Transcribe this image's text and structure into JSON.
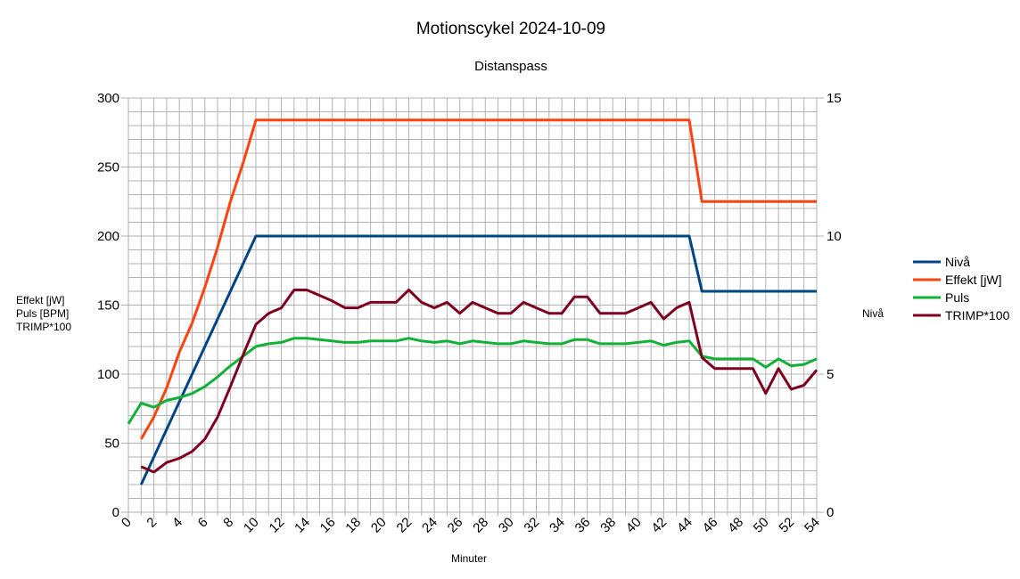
{
  "chart_data": {
    "type": "line",
    "title": "Motionscykel 2024-10-09",
    "subtitle": "Distanspass",
    "xlabel": "Minuter",
    "ylabel_left": [
      "Effekt [jW]",
      "Puls [BPM]",
      "TRIMP*100"
    ],
    "ylabel_right": "Nivå",
    "xlim": [
      0,
      54
    ],
    "ylim_left": [
      0,
      300
    ],
    "ylim_right": [
      0,
      15
    ],
    "x_ticks": [
      0,
      2,
      4,
      6,
      8,
      10,
      12,
      14,
      16,
      18,
      20,
      22,
      24,
      26,
      28,
      30,
      32,
      34,
      36,
      38,
      40,
      42,
      44,
      46,
      48,
      50,
      52,
      54
    ],
    "y_left_ticks": [
      0,
      50,
      100,
      150,
      200,
      250,
      300
    ],
    "y_right_ticks": [
      0,
      5,
      10,
      15
    ],
    "grid": true,
    "legend_position": "right",
    "series": [
      {
        "name": "Nivå",
        "axis": "right",
        "color": "#004586",
        "x": [
          1,
          10,
          44,
          45,
          54
        ],
        "values": [
          1,
          10,
          10,
          8,
          8
        ]
      },
      {
        "name": "Effekt [jW]",
        "axis": "left",
        "color": "#ff420e",
        "x": [
          1,
          2,
          3,
          4,
          5,
          6,
          7,
          8,
          9,
          10,
          44,
          45,
          54
        ],
        "values": [
          53,
          69,
          90,
          116,
          137,
          163,
          192,
          225,
          253,
          284,
          284,
          225,
          225
        ]
      },
      {
        "name": "Puls",
        "axis": "left",
        "color": "#12b135",
        "x": [
          0,
          1,
          2,
          3,
          4,
          5,
          6,
          7,
          8,
          9,
          10,
          11,
          12,
          13,
          14,
          15,
          16,
          17,
          18,
          19,
          20,
          21,
          22,
          23,
          24,
          25,
          26,
          27,
          28,
          29,
          30,
          31,
          32,
          33,
          34,
          35,
          36,
          37,
          38,
          39,
          40,
          41,
          42,
          43,
          44,
          45,
          46,
          47,
          48,
          49,
          50,
          51,
          52,
          53,
          54
        ],
        "values": [
          64,
          79,
          76,
          81,
          83,
          86,
          91,
          98,
          106,
          113,
          120,
          122,
          123,
          126,
          126,
          125,
          124,
          123,
          123,
          124,
          124,
          124,
          126,
          124,
          123,
          124,
          122,
          124,
          123,
          122,
          122,
          124,
          123,
          122,
          122,
          125,
          125,
          122,
          122,
          122,
          123,
          124,
          121,
          123,
          124,
          113,
          111,
          111,
          111,
          111,
          105,
          111,
          106,
          107,
          111
        ]
      },
      {
        "name": "TRIMP*100",
        "axis": "left",
        "color": "#7e0021",
        "x": [
          1,
          2,
          3,
          4,
          5,
          6,
          7,
          8,
          9,
          10,
          11,
          12,
          13,
          14,
          15,
          16,
          17,
          18,
          19,
          20,
          21,
          22,
          23,
          24,
          25,
          26,
          27,
          28,
          29,
          30,
          31,
          32,
          33,
          34,
          35,
          36,
          37,
          38,
          39,
          40,
          41,
          42,
          43,
          44,
          45,
          46,
          47,
          48,
          49,
          50,
          51,
          52,
          53,
          54
        ],
        "values": [
          33,
          29,
          36,
          39,
          44,
          53,
          69,
          91,
          114,
          136,
          144,
          148,
          161,
          161,
          157,
          153,
          148,
          148,
          152,
          152,
          152,
          161,
          152,
          148,
          152,
          144,
          152,
          148,
          144,
          144,
          152,
          148,
          144,
          144,
          156,
          156,
          144,
          144,
          144,
          148,
          152,
          140,
          148,
          152,
          112,
          104,
          104,
          104,
          104,
          86,
          104,
          89,
          92,
          103
        ]
      }
    ]
  }
}
